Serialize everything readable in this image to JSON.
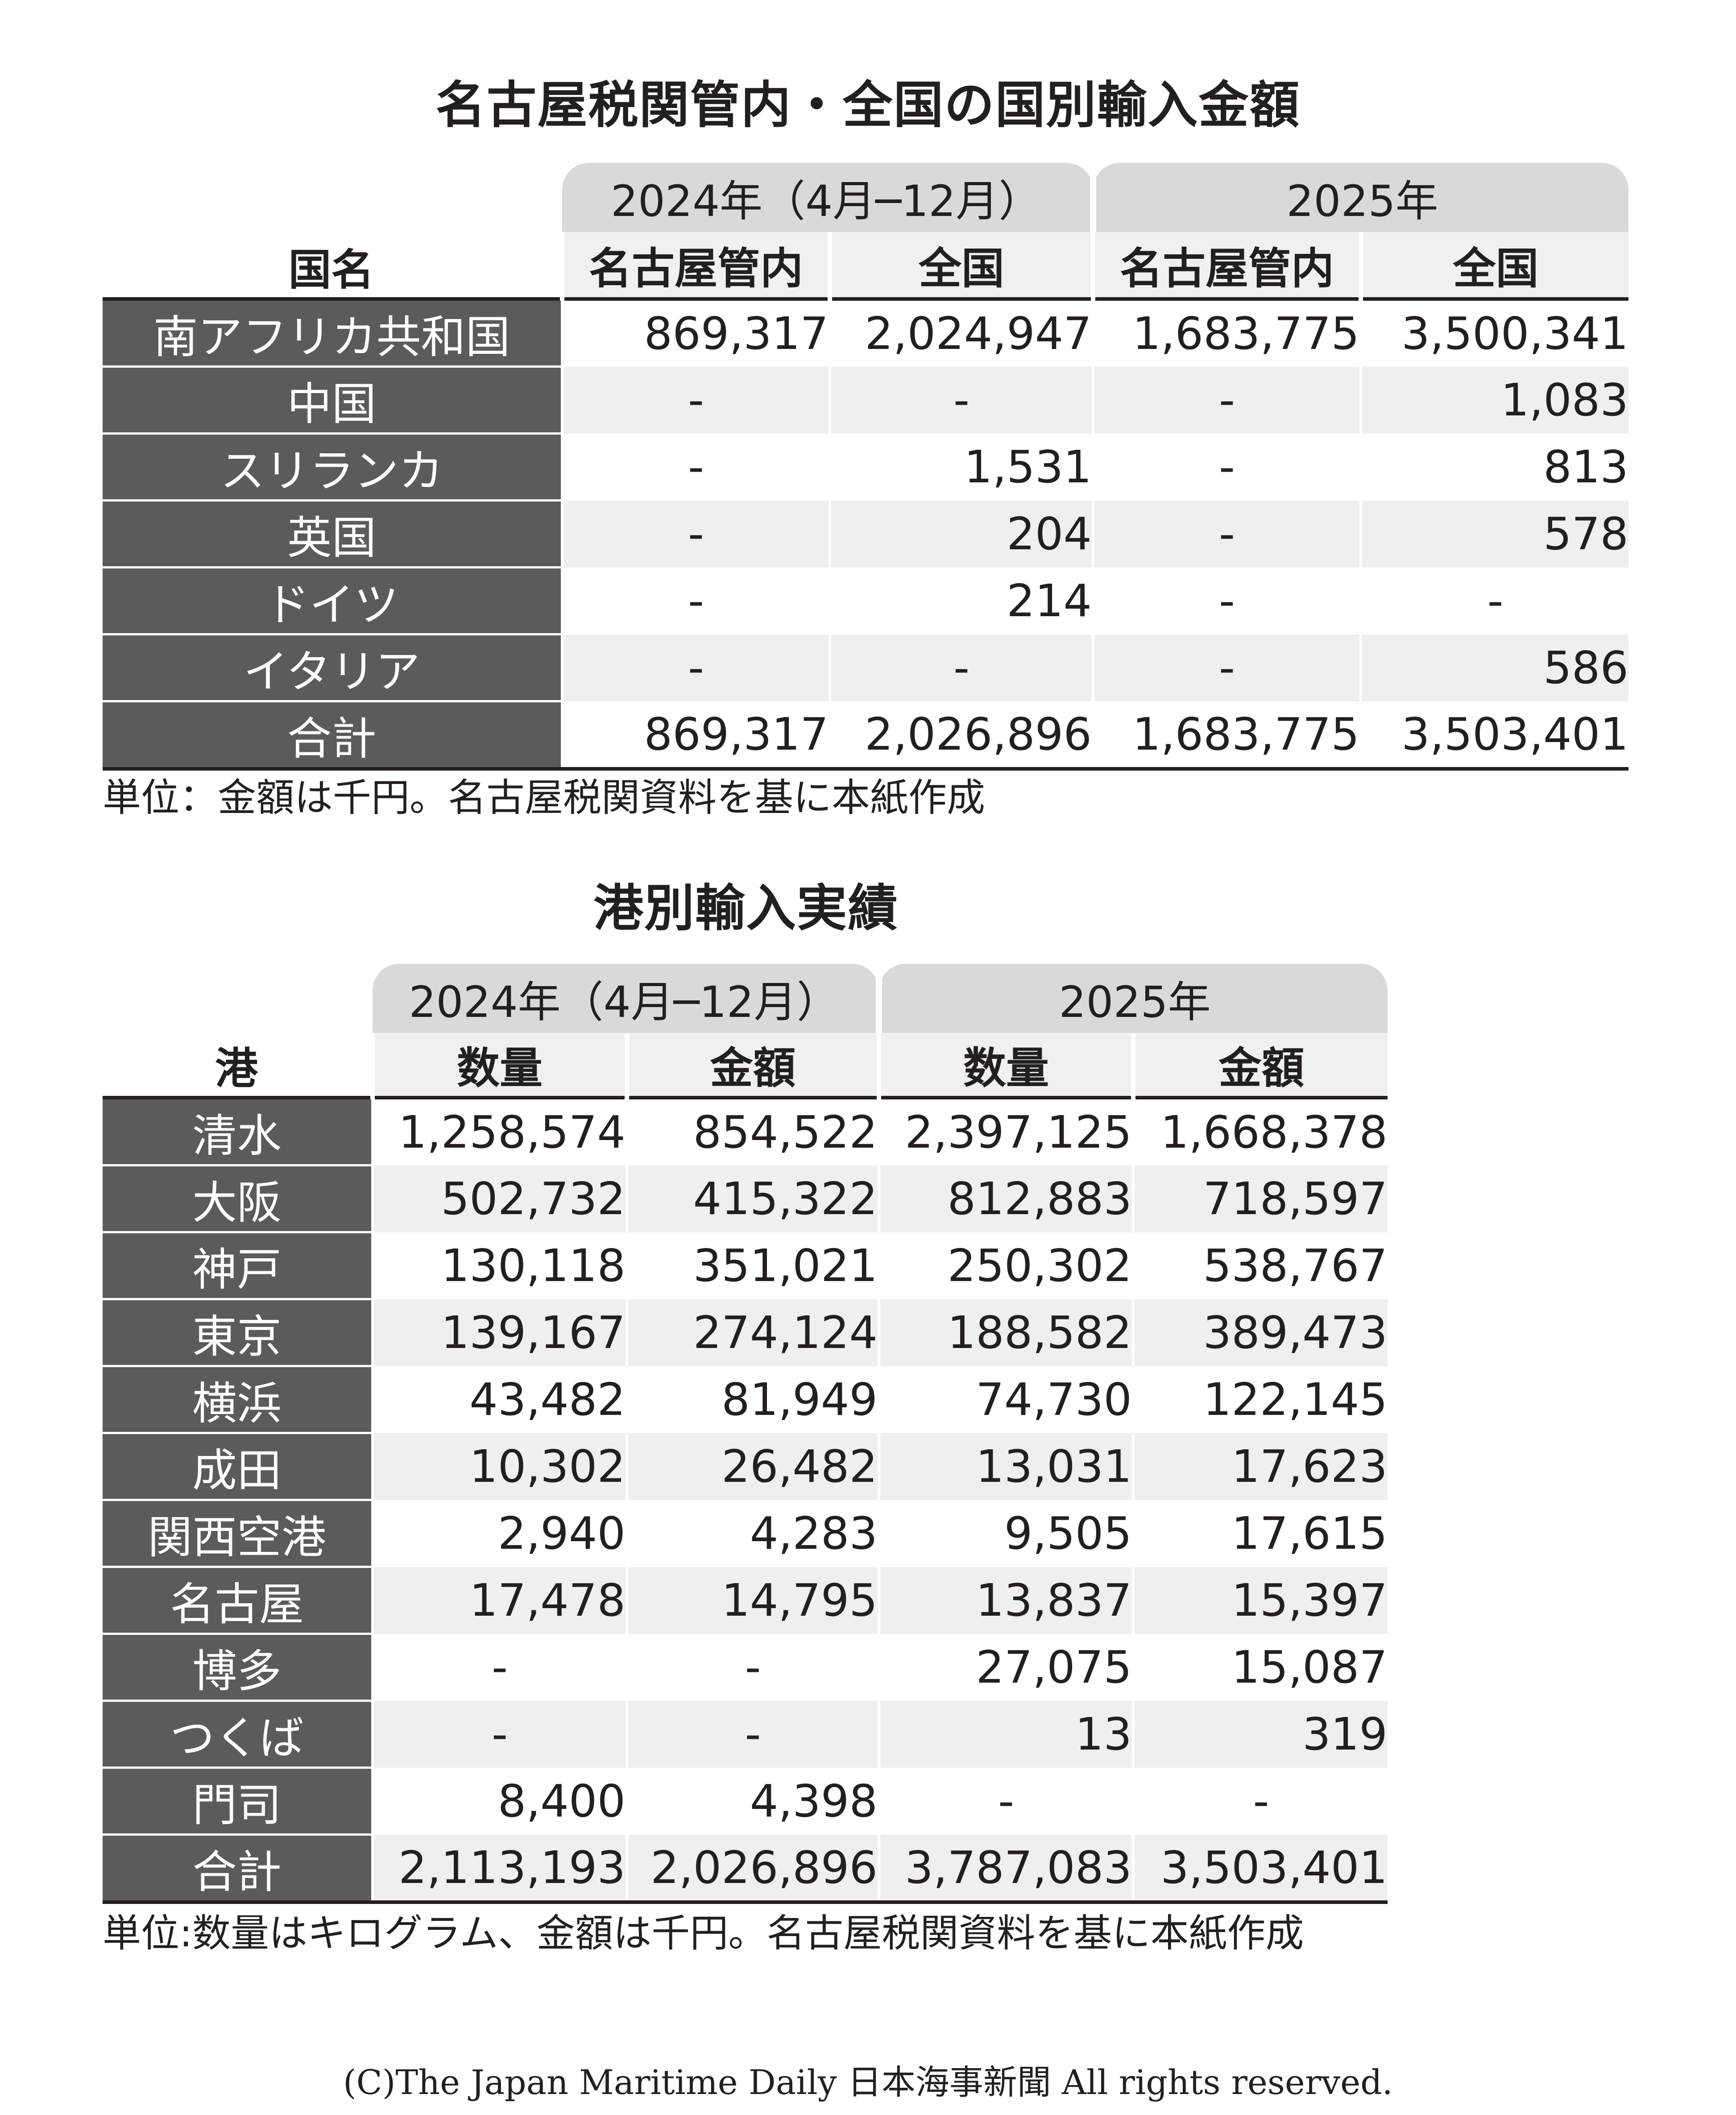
{
  "table1": {
    "title": "名古屋税関管内・全国の国別輸入金額",
    "group_headers": [
      "2024年（4月─12月）",
      "2025年"
    ],
    "corner_label": "国名",
    "sub_headers": [
      "名古屋管内",
      "全国",
      "名古屋管内",
      "全国"
    ],
    "rows": [
      {
        "name": "南アフリカ共和国",
        "values": [
          "869,317",
          "2,024,947",
          "1,683,775",
          "3,500,341"
        ]
      },
      {
        "name": "中国",
        "values": [
          "-",
          "-",
          "-",
          "1,083"
        ]
      },
      {
        "name": "スリランカ",
        "values": [
          "-",
          "1,531",
          "-",
          "813"
        ]
      },
      {
        "name": "英国",
        "values": [
          "-",
          "204",
          "-",
          "578"
        ]
      },
      {
        "name": "ドイツ",
        "values": [
          "-",
          "214",
          "-",
          "-"
        ]
      },
      {
        "name": "イタリア",
        "values": [
          "-",
          "-",
          "-",
          "586"
        ]
      },
      {
        "name": "合計",
        "values": [
          "869,317",
          "2,026,896",
          "1,683,775",
          "3,503,401"
        ]
      }
    ],
    "note": "単位：金額は千円。名古屋税関資料を基に本紙作成"
  },
  "table2": {
    "title": "港別輸入実績",
    "group_headers": [
      "2024年（4月─12月）",
      "2025年"
    ],
    "corner_label": "港",
    "sub_headers": [
      "数量",
      "金額",
      "数量",
      "金額"
    ],
    "rows": [
      {
        "name": "清水",
        "values": [
          "1,258,574",
          "854,522",
          "2,397,125",
          "1,668,378"
        ]
      },
      {
        "name": "大阪",
        "values": [
          "502,732",
          "415,322",
          "812,883",
          "718,597"
        ]
      },
      {
        "name": "神戸",
        "values": [
          "130,118",
          "351,021",
          "250,302",
          "538,767"
        ]
      },
      {
        "name": "東京",
        "values": [
          "139,167",
          "274,124",
          "188,582",
          "389,473"
        ]
      },
      {
        "name": "横浜",
        "values": [
          "43,482",
          "81,949",
          "74,730",
          "122,145"
        ]
      },
      {
        "name": "成田",
        "values": [
          "10,302",
          "26,482",
          "13,031",
          "17,623"
        ]
      },
      {
        "name": "関西空港",
        "values": [
          "2,940",
          "4,283",
          "9,505",
          "17,615"
        ]
      },
      {
        "name": "名古屋",
        "values": [
          "17,478",
          "14,795",
          "13,837",
          "15,397"
        ]
      },
      {
        "name": "博多",
        "values": [
          "-",
          "-",
          "27,075",
          "15,087"
        ]
      },
      {
        "name": "つくば",
        "values": [
          "-",
          "-",
          "13",
          "319"
        ]
      },
      {
        "name": "門司",
        "values": [
          "8,400",
          "4,398",
          "-",
          "-"
        ]
      },
      {
        "name": "合計",
        "values": [
          "2,113,193",
          "2,026,896",
          "3,787,083",
          "3,503,401"
        ]
      }
    ],
    "note": "単位:数量はキログラム、金額は千円。名古屋税関資料を基に本紙作成"
  },
  "copyright": "(C)The Japan Maritime Daily 日本海事新聞 All rights reserved."
}
